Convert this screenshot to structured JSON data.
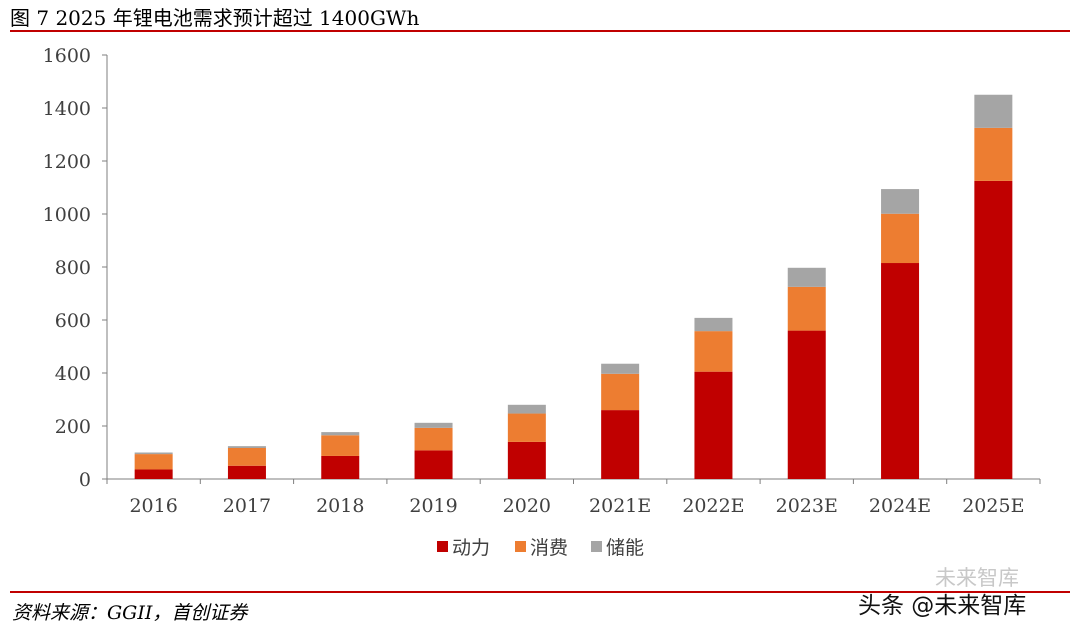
{
  "header": {
    "title": "图  7 2025 年锂电池需求预计超过 1400GWh"
  },
  "footer": {
    "source": "资料来源：GGII，首创证券",
    "watermark": "头条 @未来智库",
    "watermark_faint": "未来智库"
  },
  "colors": {
    "power": "#c00000",
    "consumer": "#ed7d31",
    "storage": "#a5a5a5",
    "rule": "#c00000"
  },
  "chart_data": {
    "type": "bar",
    "stacked": true,
    "categories": [
      "2016",
      "2017",
      "2018",
      "2019",
      "2020",
      "2021E",
      "2022E",
      "2023E",
      "2024E",
      "2025E"
    ],
    "series": [
      {
        "name": "动力",
        "color": "#c00000",
        "values": [
          36,
          50,
          87,
          108,
          140,
          260,
          405,
          560,
          815,
          1125
        ]
      },
      {
        "name": "消费",
        "color": "#ed7d31",
        "values": [
          58,
          67,
          78,
          85,
          107,
          137,
          153,
          165,
          186,
          200
        ]
      },
      {
        "name": "储能",
        "color": "#a5a5a5",
        "values": [
          6,
          7,
          12,
          19,
          33,
          38,
          50,
          72,
          93,
          125
        ]
      }
    ],
    "ylim": [
      0,
      1600
    ],
    "yticks": [
      "0",
      "200",
      "400",
      "600",
      "800",
      "1000",
      "1200",
      "1400",
      "1600"
    ],
    "grid": false,
    "legend_position": "bottom"
  }
}
